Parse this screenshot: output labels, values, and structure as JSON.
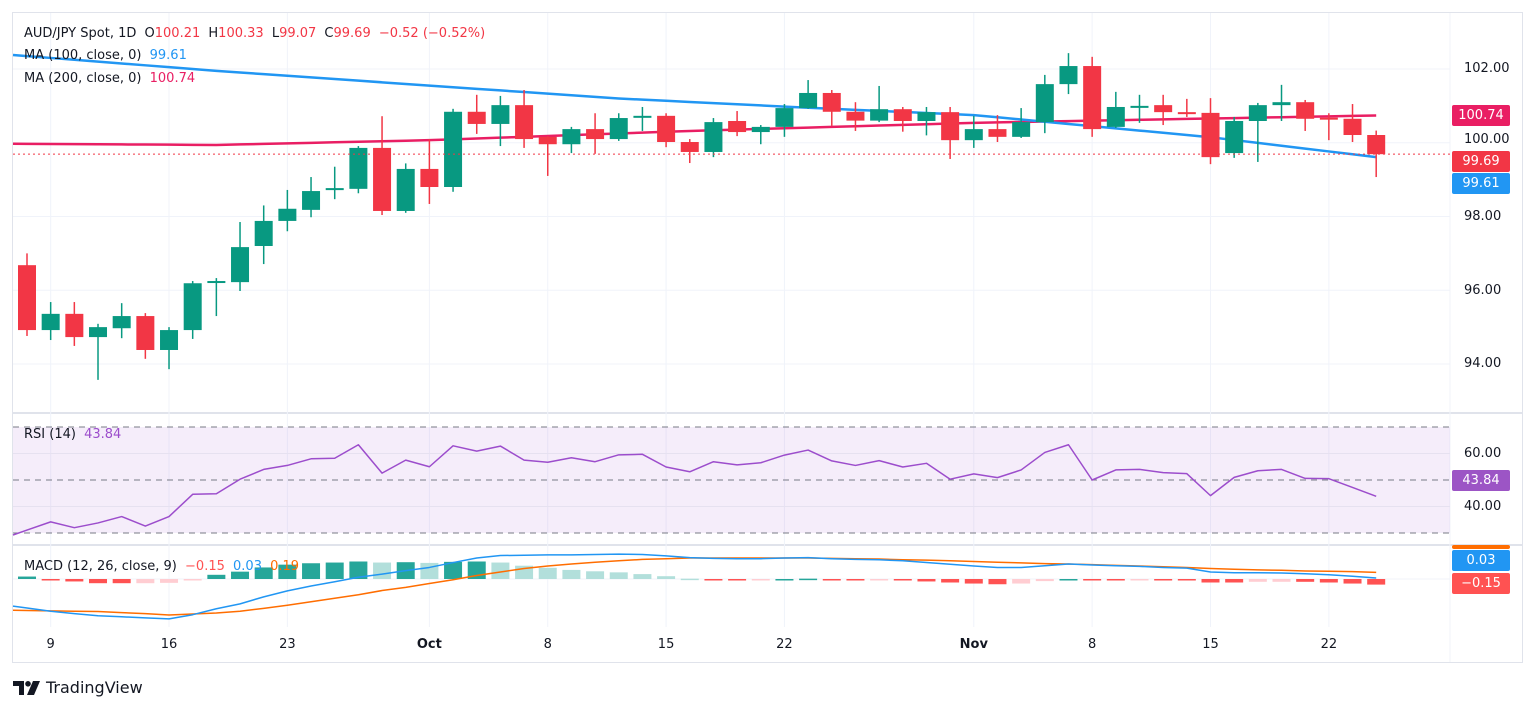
{
  "header": {
    "symbol": "AUD/JPY Spot, 1D",
    "open_label": "O",
    "open": "100.21",
    "high_label": "H",
    "high": "100.33",
    "low_label": "L",
    "low": "99.07",
    "close_label": "C",
    "close": "99.69",
    "change": "−0.52 (−0.52%)"
  },
  "ma100": {
    "label": "MA (100, close, 0)",
    "value": "99.61"
  },
  "ma200": {
    "label": "MA (200, close, 0)",
    "value": "100.74"
  },
  "rsi": {
    "label": "RSI (14)",
    "value": "43.84",
    "axis": [
      "60.00",
      "40.00"
    ]
  },
  "macd": {
    "label": "MACD (12, 26, close, 9)",
    "hist": "−0.15",
    "macd": "0.03",
    "signal": "0.19",
    "axis_macd": "0.03",
    "axis_hist": "−0.15"
  },
  "price_axis": [
    "102.00",
    "100.00",
    "98.00",
    "96.00",
    "94.00"
  ],
  "price_tags": {
    "ma200": "100.74",
    "last": "99.69",
    "ma100": "99.61"
  },
  "time_axis": [
    {
      "label": "9",
      "bar": 1,
      "bold": false
    },
    {
      "label": "16",
      "bar": 6,
      "bold": false
    },
    {
      "label": "23",
      "bar": 11,
      "bold": false
    },
    {
      "label": "Oct",
      "bar": 17,
      "bold": true
    },
    {
      "label": "8",
      "bar": 22,
      "bold": false
    },
    {
      "label": "15",
      "bar": 27,
      "bold": false
    },
    {
      "label": "22",
      "bar": 32,
      "bold": false
    },
    {
      "label": "Nov",
      "bar": 40,
      "bold": true
    },
    {
      "label": "8",
      "bar": 45,
      "bold": false
    },
    {
      "label": "15",
      "bar": 50,
      "bold": false
    },
    {
      "label": "22",
      "bar": 55,
      "bold": false
    }
  ],
  "brand": "TradingView",
  "colors": {
    "up": "#089981",
    "down": "#F23645",
    "ma100": "#2196F3",
    "ma200": "#E91E63",
    "rsi": "#9C4DCC",
    "macd": "#2196F3",
    "signal": "#FF6D00"
  },
  "chart_data": {
    "type": "candlestick",
    "title": "AUD/JPY Spot, 1D",
    "ylim": [
      92.7,
      102.9
    ],
    "candles_ohlc": [
      [
        96.68,
        97.0,
        94.76,
        94.92
      ],
      [
        94.92,
        95.68,
        94.65,
        95.36
      ],
      [
        95.36,
        95.68,
        94.49,
        94.73
      ],
      [
        94.73,
        95.09,
        93.57,
        95.0
      ],
      [
        94.97,
        95.65,
        94.7,
        95.3
      ],
      [
        95.3,
        95.38,
        94.14,
        94.38
      ],
      [
        94.38,
        95.0,
        93.86,
        94.92
      ],
      [
        94.92,
        96.25,
        94.68,
        96.19
      ],
      [
        96.2,
        96.33,
        95.3,
        96.25
      ],
      [
        96.22,
        97.85,
        95.98,
        97.17
      ],
      [
        97.2,
        98.3,
        96.71,
        97.88
      ],
      [
        97.88,
        98.72,
        97.6,
        98.21
      ],
      [
        98.18,
        99.07,
        97.98,
        98.69
      ],
      [
        98.72,
        99.35,
        98.47,
        98.77
      ],
      [
        98.75,
        99.91,
        98.63,
        99.86
      ],
      [
        99.86,
        100.72,
        98.04,
        98.15
      ],
      [
        98.15,
        99.44,
        98.1,
        99.29
      ],
      [
        99.29,
        100.1,
        98.34,
        98.8
      ],
      [
        98.8,
        100.92,
        98.67,
        100.84
      ],
      [
        100.84,
        101.3,
        100.24,
        100.51
      ],
      [
        100.51,
        101.27,
        99.91,
        101.02
      ],
      [
        101.02,
        101.43,
        99.86,
        100.1
      ],
      [
        100.16,
        100.18,
        99.1,
        99.96
      ],
      [
        99.96,
        100.43,
        99.72,
        100.37
      ],
      [
        100.37,
        100.8,
        99.7,
        100.1
      ],
      [
        100.1,
        100.8,
        100.05,
        100.67
      ],
      [
        100.7,
        100.97,
        100.32,
        100.73
      ],
      [
        100.73,
        100.8,
        99.88,
        100.02
      ],
      [
        100.02,
        100.1,
        99.45,
        99.75
      ],
      [
        99.75,
        100.67,
        99.61,
        100.56
      ],
      [
        100.59,
        100.86,
        100.18,
        100.29
      ],
      [
        100.29,
        100.48,
        99.96,
        100.43
      ],
      [
        100.43,
        101.05,
        100.16,
        100.94
      ],
      [
        100.94,
        101.7,
        100.92,
        101.35
      ],
      [
        101.35,
        101.43,
        100.46,
        100.84
      ],
      [
        100.84,
        101.1,
        100.32,
        100.6
      ],
      [
        100.6,
        101.54,
        100.56,
        100.91
      ],
      [
        100.91,
        100.97,
        100.3,
        100.59
      ],
      [
        100.59,
        100.97,
        100.2,
        100.83
      ],
      [
        100.83,
        100.97,
        99.56,
        100.07
      ],
      [
        100.07,
        100.73,
        99.86,
        100.37
      ],
      [
        100.37,
        100.75,
        100.02,
        100.16
      ],
      [
        100.16,
        100.94,
        100.13,
        100.56
      ],
      [
        100.56,
        101.84,
        100.26,
        101.59
      ],
      [
        101.59,
        102.43,
        101.32,
        102.08
      ],
      [
        102.08,
        102.33,
        100.16,
        100.37
      ],
      [
        100.43,
        101.38,
        100.4,
        100.97
      ],
      [
        100.97,
        101.3,
        100.54,
        101.0
      ],
      [
        101.02,
        101.3,
        100.48,
        100.83
      ],
      [
        100.83,
        101.19,
        100.7,
        100.78
      ],
      [
        100.81,
        101.21,
        99.42,
        99.61
      ],
      [
        99.72,
        100.7,
        99.59,
        100.59
      ],
      [
        100.59,
        101.08,
        99.48,
        101.02
      ],
      [
        101.02,
        101.57,
        100.59,
        101.1
      ],
      [
        101.1,
        101.16,
        100.32,
        100.65
      ],
      [
        100.68,
        100.8,
        100.07,
        100.65
      ],
      [
        100.65,
        101.05,
        100.02,
        100.21
      ],
      [
        100.21,
        100.33,
        99.07,
        99.69
      ]
    ],
    "ma100_points": [
      [
        0,
        102.35
      ],
      [
        8,
        101.95
      ],
      [
        17,
        101.55
      ],
      [
        25,
        101.2
      ],
      [
        33,
        100.95
      ],
      [
        40,
        100.75
      ],
      [
        45,
        100.45
      ],
      [
        50,
        100.15
      ],
      [
        57,
        99.61
      ]
    ],
    "ma200_points": [
      [
        0,
        99.97
      ],
      [
        8,
        99.94
      ],
      [
        17,
        100.07
      ],
      [
        28,
        100.32
      ],
      [
        40,
        100.54
      ],
      [
        57,
        100.74
      ]
    ],
    "rsi_values": [
      31.1,
      34.2,
      32,
      33.8,
      36.2,
      32.6,
      36.2,
      44.6,
      44.8,
      50.3,
      54,
      55.5,
      58,
      58.2,
      63.3,
      52.6,
      57.5,
      55,
      62.9,
      60.9,
      62.8,
      57.5,
      56.7,
      58.4,
      56.9,
      59.5,
      59.7,
      54.9,
      53.1,
      56.9,
      55.7,
      56.5,
      59.4,
      61.3,
      57.2,
      55.5,
      57.3,
      54.9,
      56.3,
      50.3,
      52.3,
      50.9,
      53.8,
      60.4,
      63.3,
      50,
      53.8,
      54,
      52.8,
      52.4,
      44.1,
      51,
      53.5,
      54,
      50.6,
      50.5,
      47.2,
      43.84
    ],
    "rsi_levels": [
      70,
      50,
      30
    ],
    "macd_values": [
      -0.83,
      -0.92,
      -0.99,
      -1.05,
      -1.08,
      -1.11,
      -1.14,
      -1.02,
      -0.85,
      -0.71,
      -0.51,
      -0.34,
      -0.2,
      -0.08,
      0.05,
      0.14,
      0.24,
      0.33,
      0.47,
      0.6,
      0.67,
      0.68,
      0.69,
      0.69,
      0.7,
      0.71,
      0.7,
      0.66,
      0.61,
      0.59,
      0.58,
      0.58,
      0.6,
      0.61,
      0.58,
      0.56,
      0.55,
      0.52,
      0.47,
      0.42,
      0.37,
      0.33,
      0.33,
      0.38,
      0.43,
      0.4,
      0.38,
      0.36,
      0.33,
      0.31,
      0.2,
      0.18,
      0.18,
      0.17,
      0.15,
      0.12,
      0.08,
      0.03
    ],
    "signal_values": [
      -0.9,
      -0.91,
      -0.92,
      -0.93,
      -0.96,
      -0.99,
      -1.03,
      -1.0,
      -0.97,
      -0.92,
      -0.84,
      -0.75,
      -0.65,
      -0.55,
      -0.45,
      -0.33,
      -0.24,
      -0.13,
      -0.02,
      0.1,
      0.2,
      0.3,
      0.37,
      0.43,
      0.48,
      0.52,
      0.56,
      0.58,
      0.6,
      0.6,
      0.6,
      0.6,
      0.6,
      0.6,
      0.59,
      0.58,
      0.57,
      0.55,
      0.54,
      0.52,
      0.5,
      0.48,
      0.46,
      0.44,
      0.43,
      0.41,
      0.39,
      0.37,
      0.35,
      0.33,
      0.3,
      0.28,
      0.26,
      0.25,
      0.23,
      0.22,
      0.21,
      0.19
    ]
  }
}
